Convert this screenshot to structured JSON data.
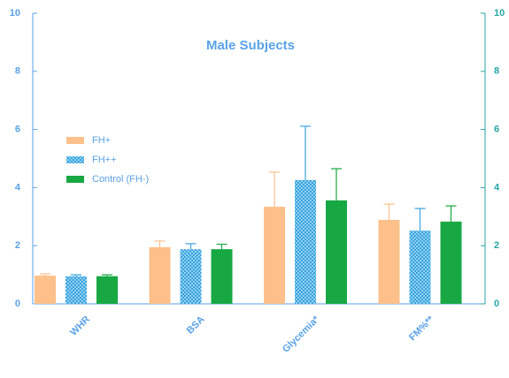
{
  "chart_data": {
    "type": "bar",
    "title": "Male Subjects",
    "categories": [
      "WHR",
      "BSA",
      "Glycemia*",
      "FM%**"
    ],
    "series": [
      {
        "name": "FH+",
        "color": "#fdc08a",
        "values": [
          0.97,
          1.95,
          3.34,
          2.89
        ],
        "errors": [
          0.06,
          0.21,
          1.19,
          0.54
        ]
      },
      {
        "name": "FH++",
        "color": "#3aa3dc",
        "values": [
          0.95,
          1.88,
          4.26,
          2.52
        ],
        "errors": [
          0.05,
          0.19,
          1.85,
          0.76
        ]
      },
      {
        "name": "Control (FH-)",
        "color": "#17a843",
        "values": [
          0.95,
          1.88,
          3.56,
          2.83
        ],
        "errors": [
          0.05,
          0.17,
          1.09,
          0.54
        ]
      }
    ],
    "ylim": [
      0,
      10
    ],
    "yticks": [
      0,
      2,
      4,
      6,
      8,
      10
    ],
    "y2lim": [
      0,
      10
    ],
    "y2ticks": [
      0,
      2,
      4,
      6,
      8,
      10
    ]
  }
}
